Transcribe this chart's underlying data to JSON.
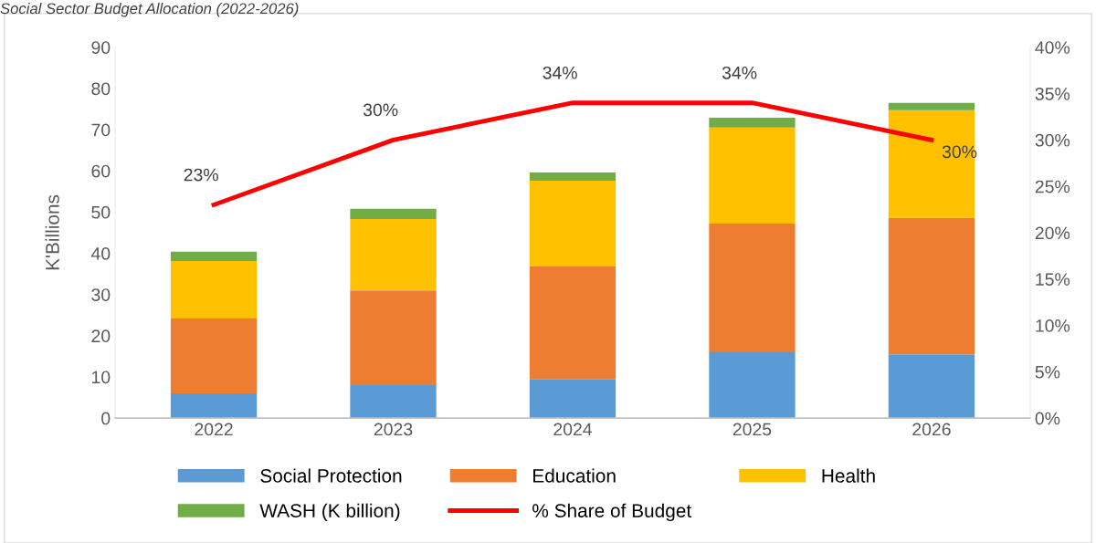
{
  "chart_data": {
    "type": "bar",
    "title": "Social Sector Budget Allocation (2022-2026)",
    "ylabel": "K'Billions",
    "categories": [
      "2022",
      "2023",
      "2024",
      "2025",
      "2026"
    ],
    "stacked": true,
    "series": [
      {
        "name": "Social Protection",
        "color": "#5b9bd5",
        "values": [
          6.0,
          8.0,
          9.5,
          16.0,
          15.5
        ]
      },
      {
        "name": "Education",
        "color": "#ed7d31",
        "values": [
          18.2,
          23.0,
          27.3,
          31.2,
          33.1
        ]
      },
      {
        "name": "Health",
        "color": "#ffc000",
        "values": [
          13.9,
          17.3,
          20.8,
          23.3,
          26.1
        ]
      },
      {
        "name": "WASH (K billion)",
        "color": "#70ad47",
        "values": [
          2.3,
          2.5,
          2.0,
          2.4,
          1.8
        ]
      },
      {
        "name": "% Share of Budget",
        "type": "line",
        "axis": "y2",
        "color": "#ff0000",
        "values": [
          23,
          30,
          34,
          34,
          30
        ],
        "value_labels": [
          "23%",
          "30%",
          "34%",
          "34%",
          "30%"
        ],
        "marker": "none"
      }
    ],
    "ylim": [
      0,
      90
    ],
    "yticks": [
      0,
      10,
      20,
      30,
      40,
      50,
      60,
      70,
      80,
      90
    ],
    "y2lim": [
      0,
      40
    ],
    "y2ticks": [
      {
        "value": 0,
        "label": "0%"
      },
      {
        "value": 5,
        "label": "5%"
      },
      {
        "value": 10,
        "label": "10%"
      },
      {
        "value": 15,
        "label": "15%"
      },
      {
        "value": 20,
        "label": "20%"
      },
      {
        "value": 25,
        "label": "25%"
      },
      {
        "value": 30,
        "label": "30%"
      },
      {
        "value": 35,
        "label": "35%"
      },
      {
        "value": 40,
        "label": "40%"
      }
    ],
    "grid": false,
    "legend": "bottom"
  }
}
